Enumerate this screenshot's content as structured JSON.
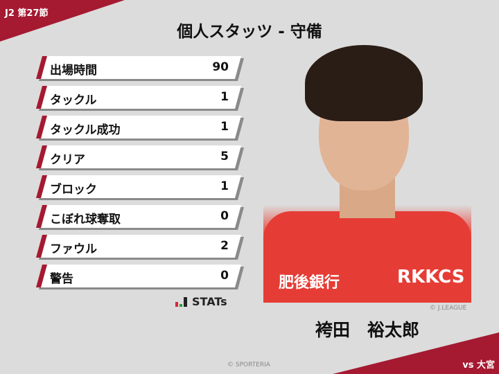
{
  "header": {
    "round": "J2 第27節",
    "title": "個人スタッツ - 守備",
    "opponent": "vs 大宮"
  },
  "stats": [
    {
      "label": "出場時間",
      "value": "90"
    },
    {
      "label": "タックル",
      "value": "1"
    },
    {
      "label": "タックル成功",
      "value": "1"
    },
    {
      "label": "クリア",
      "value": "5"
    },
    {
      "label": "ブロック",
      "value": "1"
    },
    {
      "label": "こぼれ球奪取",
      "value": "0"
    },
    {
      "label": "ファウル",
      "value": "2"
    },
    {
      "label": "警告",
      "value": "0"
    }
  ],
  "brand": {
    "stats_logo": "STATs"
  },
  "player": {
    "name": "袴田　裕太郎",
    "photo_credit": "© J.LEAGUE",
    "sponsor_left": "肥後銀行",
    "sponsor_right": "RKKCS"
  },
  "footer": {
    "credit": "© SPORTERIA"
  },
  "colors": {
    "accent": "#a51931",
    "background": "#dcdcdc"
  }
}
